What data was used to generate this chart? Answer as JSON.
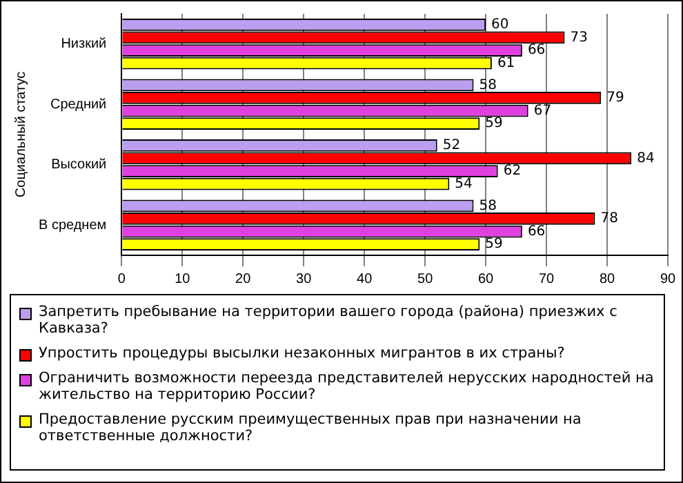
{
  "chart_data": {
    "type": "bar",
    "orientation": "horizontal",
    "ylabel": "Социальный статус",
    "categories": [
      "Низкий",
      "Средний",
      "Высокий",
      "В среднем"
    ],
    "series": [
      {
        "name": "Запретить пребывание на территории вашего города (района) приезжих с Кавказа?",
        "color": "#bb9ef0",
        "values": [
          60,
          58,
          52,
          58
        ]
      },
      {
        "name": "Упростить процедуры высылки незаконных мигрантов в их страны?",
        "color": "#ff0000",
        "values": [
          73,
          79,
          84,
          78
        ]
      },
      {
        "name": "Ограничить возможности переезда представителей нерусских народностей на жительство на территорию России?",
        "color": "#e040e0",
        "values": [
          66,
          67,
          62,
          66
        ]
      },
      {
        "name": "Предоставление русским преимущественных прав при назначении на ответственные должности?",
        "color": "#ffff00",
        "values": [
          61,
          59,
          54,
          59
        ]
      }
    ],
    "xlim": [
      0,
      90
    ],
    "xticks": [
      0,
      10,
      20,
      30,
      40,
      50,
      60,
      70,
      80,
      90
    ],
    "grid": "x",
    "legend": "bottom",
    "data_labels": true
  }
}
